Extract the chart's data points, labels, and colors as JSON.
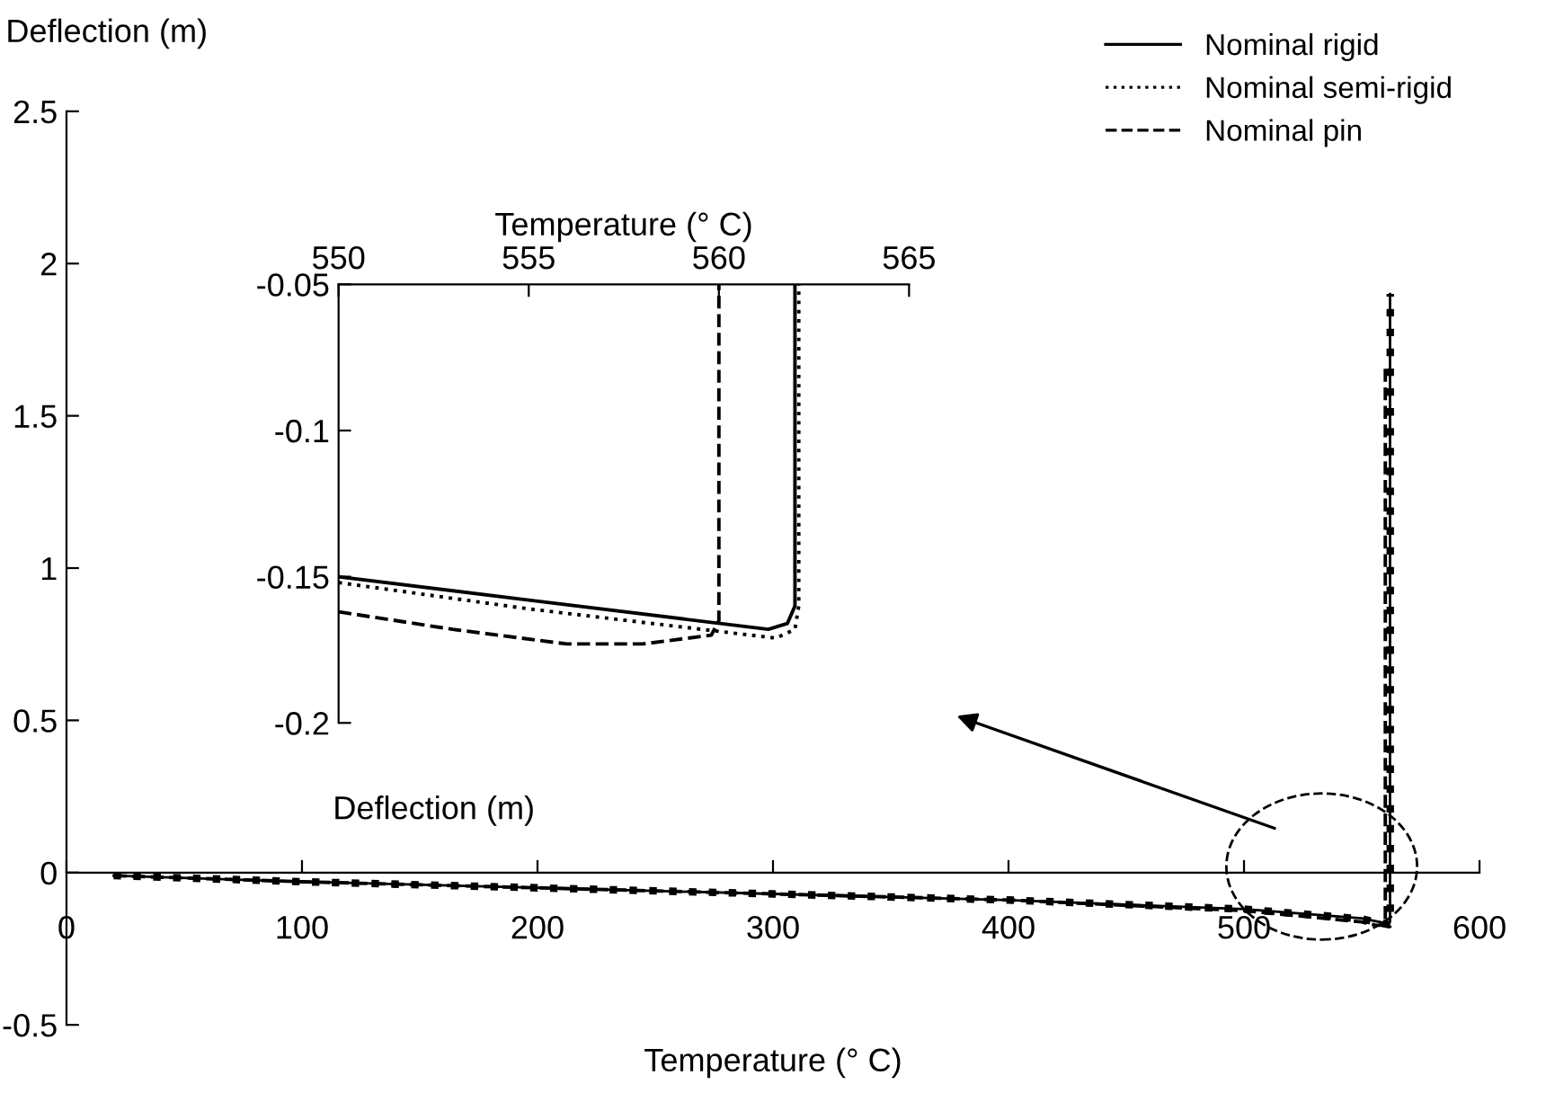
{
  "chart_data": [
    {
      "type": "line",
      "xlabel": "Temperature (° C)",
      "ylabel": "Deflection (m)",
      "xlim": [
        0,
        600
      ],
      "xticks": [
        0,
        100,
        200,
        300,
        400,
        500,
        600
      ],
      "ylim": [
        -0.5,
        2.5
      ],
      "yticks": [
        -0.5,
        0,
        0.5,
        1,
        1.5,
        2,
        2.5
      ],
      "legend": "top right",
      "grid": false,
      "series": [
        {
          "name": "Nominal rigid",
          "color": "#000000",
          "line_style": "solid",
          "x": [
            20,
            100,
            200,
            300,
            400,
            500,
            550,
            555,
            561.3,
            561.8,
            562,
            562
          ],
          "values": [
            -0.01,
            -0.03,
            -0.05,
            -0.07,
            -0.09,
            -0.12,
            -0.15,
            -0.158,
            -0.168,
            -0.166,
            -0.16,
            1.9
          ]
        },
        {
          "name": "Nominal semi-rigid",
          "color": "#000000",
          "line_style": "dotted",
          "x": [
            20,
            100,
            200,
            300,
            400,
            500,
            550,
            555,
            561.5,
            562,
            562.1,
            562.1
          ],
          "values": [
            -0.01,
            -0.03,
            -0.05,
            -0.07,
            -0.09,
            -0.12,
            -0.152,
            -0.161,
            -0.171,
            -0.168,
            -0.16,
            1.9
          ]
        },
        {
          "name": "Nominal pin",
          "color": "#000000",
          "line_style": "dashed",
          "x": [
            20,
            100,
            200,
            300,
            400,
            500,
            550,
            553,
            556,
            558,
            559.8,
            560,
            560
          ],
          "values": [
            -0.01,
            -0.03,
            -0.05,
            -0.07,
            -0.09,
            -0.125,
            -0.162,
            -0.168,
            -0.173,
            -0.173,
            -0.17,
            -0.165,
            1.66
          ]
        }
      ]
    },
    {
      "type": "line",
      "xlabel": "Temperature (° C)",
      "annotations": [
        "Deflection (m)"
      ],
      "xlim": [
        550,
        565
      ],
      "xticks": [
        550,
        555,
        560,
        565
      ],
      "ylim": [
        -0.2,
        -0.05
      ],
      "yticks": [
        -0.05,
        -0.1,
        -0.15,
        -0.2
      ],
      "grid": false,
      "series": [
        {
          "color": "#000000",
          "line_style": "solid",
          "x": [
            550,
            555,
            561.3,
            561.8,
            562,
            562
          ],
          "values": [
            -0.15,
            -0.158,
            -0.168,
            -0.166,
            -0.16,
            -0.05
          ]
        },
        {
          "color": "#000000",
          "line_style": "dotted",
          "x": [
            550,
            555,
            561.5,
            562,
            562.1,
            562.1
          ],
          "values": [
            -0.152,
            -0.161,
            -0.171,
            -0.168,
            -0.16,
            -0.05
          ]
        },
        {
          "color": "#000000",
          "line_style": "dashed",
          "x": [
            550,
            553,
            556,
            558,
            559.8,
            560,
            560
          ],
          "values": [
            -0.162,
            -0.168,
            -0.173,
            -0.173,
            -0.17,
            -0.165,
            -0.05
          ]
        }
      ]
    }
  ]
}
